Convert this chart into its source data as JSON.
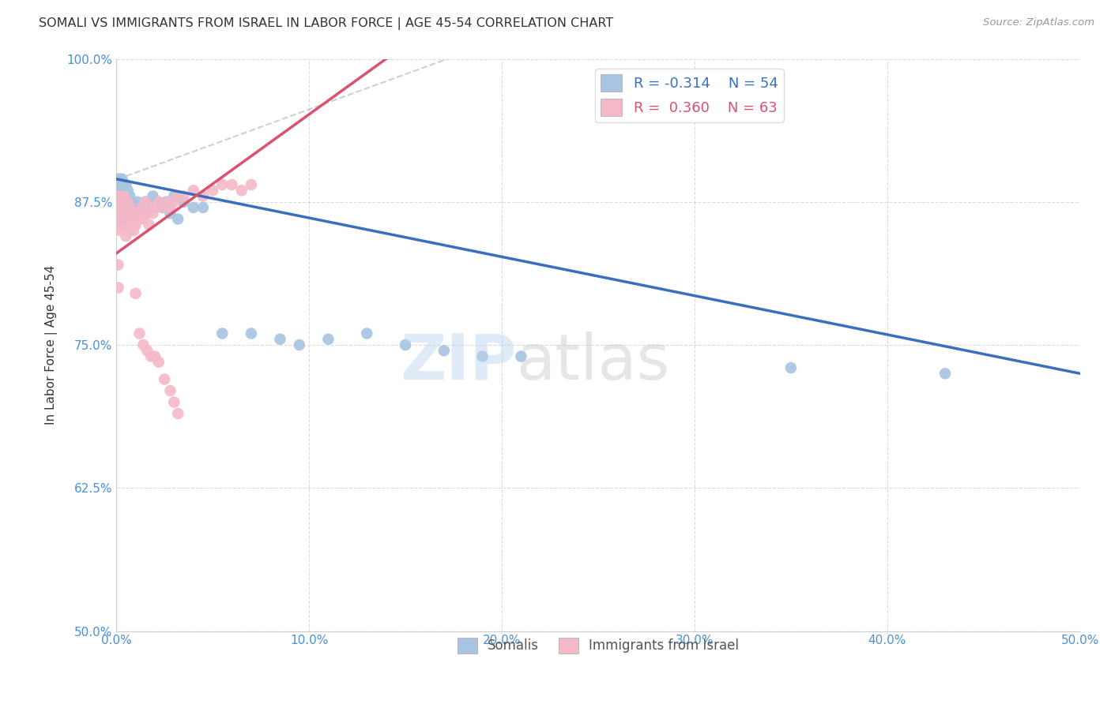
{
  "title": "SOMALI VS IMMIGRANTS FROM ISRAEL IN LABOR FORCE | AGE 45-54 CORRELATION CHART",
  "source": "Source: ZipAtlas.com",
  "ylabel": "In Labor Force | Age 45-54",
  "xlim": [
    0.0,
    0.5
  ],
  "ylim": [
    0.5,
    1.0
  ],
  "xticks": [
    0.0,
    0.1,
    0.2,
    0.3,
    0.4,
    0.5
  ],
  "yticks": [
    0.5,
    0.625,
    0.75,
    0.875,
    1.0
  ],
  "xticklabels": [
    "0.0%",
    "10.0%",
    "20.0%",
    "30.0%",
    "40.0%",
    "50.0%"
  ],
  "yticklabels": [
    "50.0%",
    "62.5%",
    "75.0%",
    "87.5%",
    "100.0%"
  ],
  "legend_r_blue": "-0.314",
  "legend_n_blue": "54",
  "legend_r_pink": "0.360",
  "legend_n_pink": "63",
  "blue_color": "#a8c4e0",
  "pink_color": "#f4b8c8",
  "blue_line_color": "#3a6fbd",
  "pink_line_color": "#d9526e",
  "watermark_zip": "ZIP",
  "watermark_atlas": "atlas",
  "title_color": "#333333",
  "axis_label_color": "#333333",
  "tick_color": "#4a90d9",
  "grid_color": "#cccccc",
  "somali_x": [
    0.001,
    0.001,
    0.001,
    0.002,
    0.002,
    0.002,
    0.002,
    0.003,
    0.003,
    0.003,
    0.003,
    0.003,
    0.004,
    0.004,
    0.004,
    0.004,
    0.005,
    0.005,
    0.005,
    0.006,
    0.006,
    0.006,
    0.007,
    0.007,
    0.008,
    0.009,
    0.01,
    0.011,
    0.012,
    0.013,
    0.015,
    0.017,
    0.019,
    0.021,
    0.024,
    0.026,
    0.028,
    0.03,
    0.032,
    0.035,
    0.04,
    0.045,
    0.055,
    0.07,
    0.085,
    0.095,
    0.11,
    0.13,
    0.15,
    0.17,
    0.19,
    0.21,
    0.35,
    0.43
  ],
  "somali_y": [
    0.895,
    0.89,
    0.88,
    0.895,
    0.885,
    0.875,
    0.87,
    0.895,
    0.885,
    0.875,
    0.865,
    0.86,
    0.89,
    0.88,
    0.87,
    0.86,
    0.89,
    0.88,
    0.87,
    0.885,
    0.875,
    0.865,
    0.88,
    0.87,
    0.875,
    0.87,
    0.865,
    0.875,
    0.87,
    0.865,
    0.875,
    0.87,
    0.88,
    0.875,
    0.87,
    0.875,
    0.865,
    0.88,
    0.86,
    0.875,
    0.87,
    0.87,
    0.76,
    0.76,
    0.755,
    0.75,
    0.755,
    0.76,
    0.75,
    0.745,
    0.74,
    0.74,
    0.73,
    0.725
  ],
  "israel_x": [
    0.001,
    0.001,
    0.001,
    0.002,
    0.002,
    0.002,
    0.002,
    0.003,
    0.003,
    0.003,
    0.004,
    0.004,
    0.004,
    0.005,
    0.005,
    0.005,
    0.005,
    0.006,
    0.006,
    0.006,
    0.007,
    0.007,
    0.007,
    0.008,
    0.008,
    0.009,
    0.009,
    0.01,
    0.01,
    0.011,
    0.012,
    0.013,
    0.014,
    0.015,
    0.016,
    0.017,
    0.019,
    0.02,
    0.022,
    0.024,
    0.026,
    0.028,
    0.03,
    0.032,
    0.035,
    0.04,
    0.045,
    0.05,
    0.055,
    0.06,
    0.065,
    0.07,
    0.01,
    0.012,
    0.014,
    0.016,
    0.018,
    0.02,
    0.022,
    0.025,
    0.028,
    0.03,
    0.032
  ],
  "israel_y": [
    0.82,
    0.8,
    0.87,
    0.88,
    0.87,
    0.86,
    0.85,
    0.875,
    0.865,
    0.855,
    0.88,
    0.87,
    0.86,
    0.875,
    0.865,
    0.855,
    0.845,
    0.875,
    0.865,
    0.855,
    0.87,
    0.86,
    0.85,
    0.865,
    0.855,
    0.86,
    0.85,
    0.865,
    0.855,
    0.86,
    0.865,
    0.87,
    0.86,
    0.875,
    0.865,
    0.855,
    0.865,
    0.87,
    0.875,
    0.87,
    0.875,
    0.87,
    0.875,
    0.88,
    0.88,
    0.885,
    0.88,
    0.885,
    0.89,
    0.89,
    0.885,
    0.89,
    0.795,
    0.76,
    0.75,
    0.745,
    0.74,
    0.74,
    0.735,
    0.72,
    0.71,
    0.7,
    0.69
  ],
  "dashed_line_x": [
    0.001,
    0.18
  ],
  "dashed_line_y": [
    0.895,
    1.005
  ],
  "blue_line_x0": 0.0,
  "blue_line_x1": 0.5,
  "blue_line_y0": 0.895,
  "blue_line_y1": 0.725,
  "pink_line_x0": 0.0,
  "pink_line_x1": 0.14,
  "pink_line_y0": 0.83,
  "pink_line_y1": 1.0
}
